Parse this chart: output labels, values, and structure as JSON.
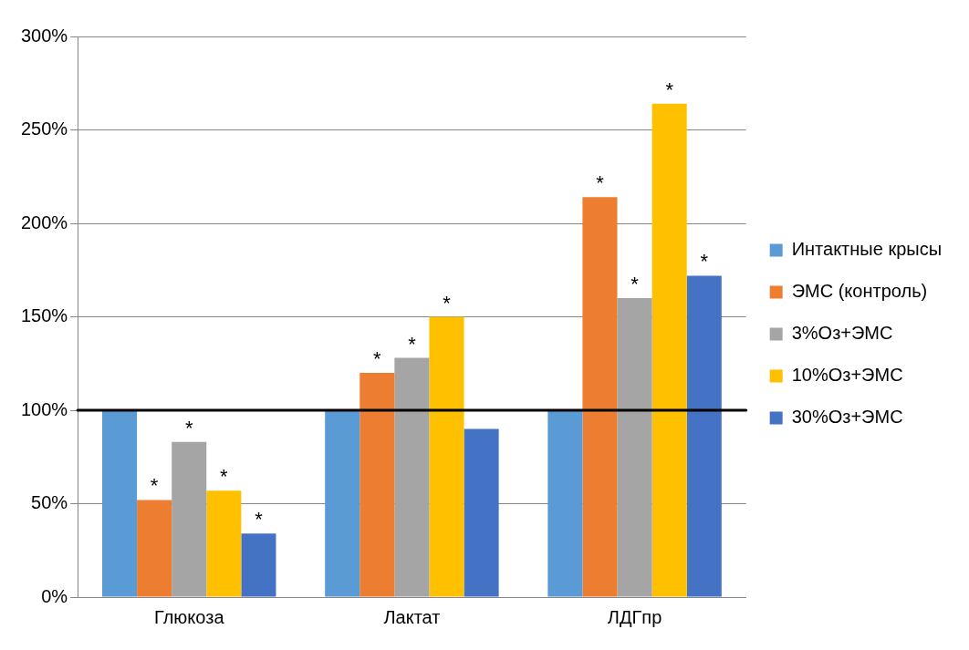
{
  "chart_data": {
    "type": "bar",
    "categories": [
      "Глюкоза",
      "Лактат",
      "ЛДГпр"
    ],
    "series": [
      {
        "name": "Интактные крысы",
        "color": "#5b9bd5",
        "values": [
          100,
          100,
          100
        ]
      },
      {
        "name": "ЭМС (контроль)",
        "color": "#ed7d31",
        "values": [
          52,
          120,
          214
        ],
        "value_labels": [
          "*",
          "*",
          "*"
        ]
      },
      {
        "name": "3%Оз+ЭМС",
        "color": "#a5a5a5",
        "values": [
          83,
          128,
          160
        ],
        "value_labels": [
          "*",
          "*",
          "*"
        ]
      },
      {
        "name": "10%Оз+ЭМС",
        "color": "#ffc000",
        "values": [
          57,
          150,
          264
        ],
        "value_labels": [
          "*",
          "*",
          "*"
        ]
      },
      {
        "name": "30%Оз+ЭМС",
        "color": "#4472c4",
        "values": [
          34,
          90,
          172
        ],
        "value_labels": [
          "*",
          null,
          "*"
        ]
      }
    ],
    "ylim": [
      0,
      300
    ],
    "yticks": [
      {
        "value": 0,
        "label": "0%"
      },
      {
        "value": 50,
        "label": "50%"
      },
      {
        "value": 100,
        "label": "100%"
      },
      {
        "value": 150,
        "label": "150%"
      },
      {
        "value": 200,
        "label": "200%"
      },
      {
        "value": 250,
        "label": "250%"
      },
      {
        "value": 300,
        "label": "300%"
      }
    ],
    "grid": "y",
    "legend": "right",
    "ref_lines": [
      {
        "axis": "y",
        "value": 100,
        "color": "#000000"
      }
    ]
  }
}
